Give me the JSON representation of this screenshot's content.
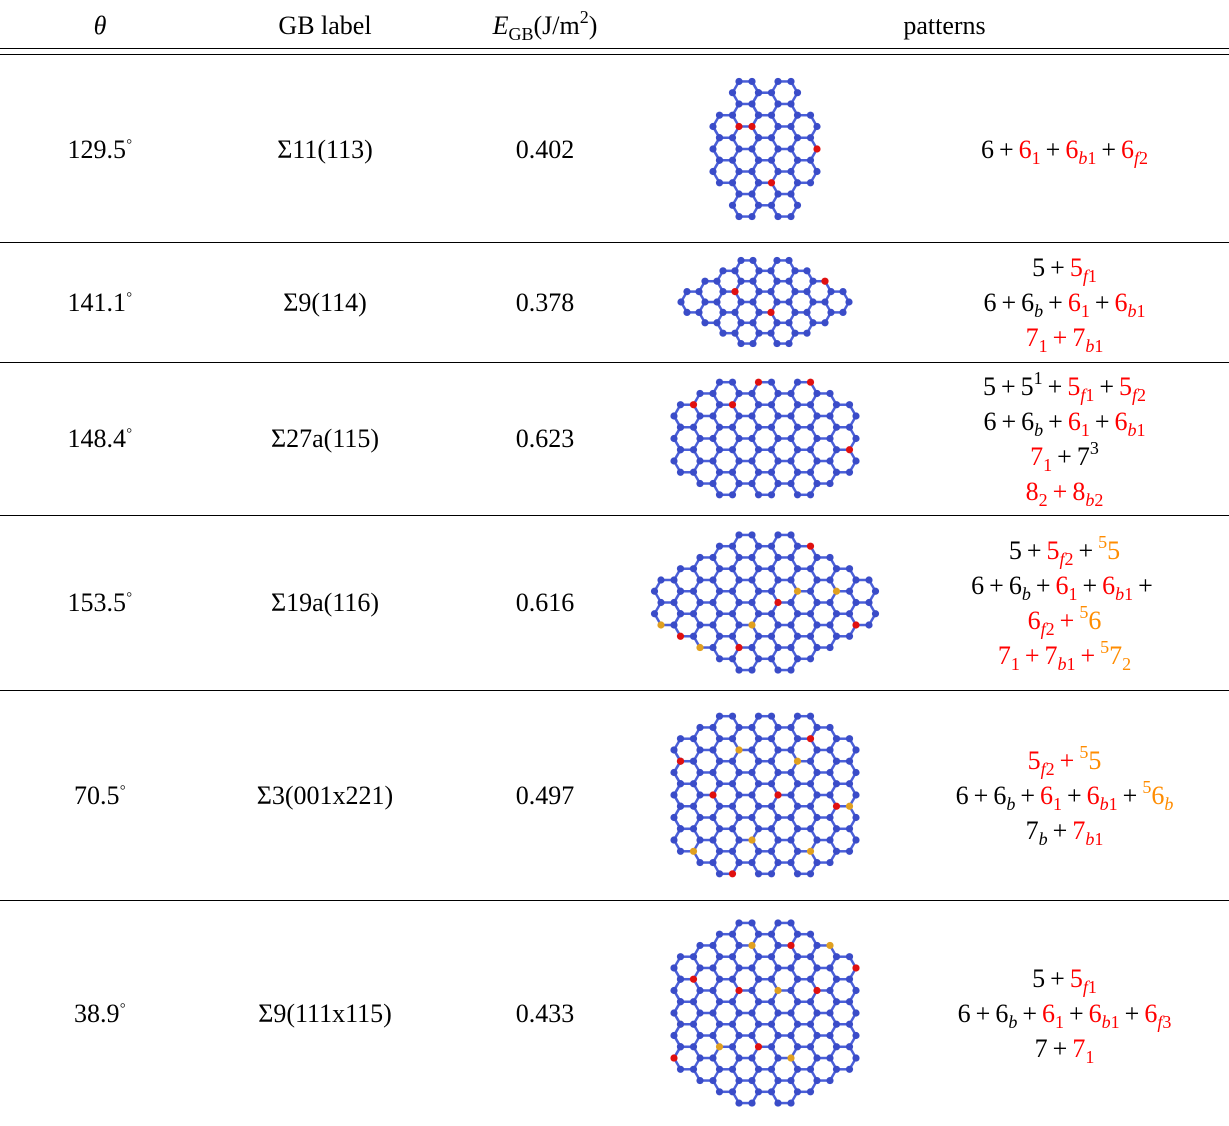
{
  "table": {
    "header": [
      [
        {
          "text": "θ"
        }
      ],
      [
        {
          "text": "GB label"
        }
      ],
      [
        {
          "text": "E",
          "sub": "GB"
        },
        {
          "text": "(J/m",
          "sup": "2"
        },
        {
          "text": ")"
        }
      ],
      [
        {
          "text": "patterns"
        }
      ]
    ],
    "rows": [
      {
        "theta": [
          {
            "text": "129.5",
            "sup": "◦"
          }
        ],
        "label": [
          {
            "text": "Σ11(113)"
          }
        ],
        "energy": 0.402,
        "patterns": [
          [
            {
              "text": "6"
            },
            {
              "text": "+"
            },
            {
              "text": "6",
              "sub": "1",
              "color": "#ff0000"
            },
            {
              "text": "+"
            },
            {
              "text": "6",
              "sub": "b1",
              "color": "#ff0000"
            },
            {
              "text": "+"
            },
            {
              "text": "6",
              "sub": "f2",
              "color": "#ff0000"
            }
          ]
        ]
      },
      {
        "theta": [
          {
            "text": "141.1",
            "sup": "◦"
          }
        ],
        "label": [
          {
            "text": "Σ9(114)"
          }
        ],
        "energy": 0.378,
        "patterns": [
          [
            {
              "text": "5"
            },
            {
              "text": "+"
            },
            {
              "text": "5",
              "sub": "f1",
              "color": "#ff0000"
            }
          ],
          [
            {
              "text": "6"
            },
            {
              "text": "+"
            },
            {
              "text": "6",
              "sub": "b"
            },
            {
              "text": "+"
            },
            {
              "text": "6",
              "sub": "1",
              "color": "#ff0000"
            },
            {
              "text": "+"
            },
            {
              "text": "6",
              "sub": "b1",
              "color": "#ff0000"
            }
          ],
          [
            {
              "text": "7",
              "sub": "1",
              "color": "#ff0000"
            },
            {
              "text": "+",
              "color": "#ff0000"
            },
            {
              "text": "7",
              "sub": "b1",
              "color": "#ff0000"
            }
          ]
        ]
      },
      {
        "theta": [
          {
            "text": "148.4",
            "sup": "◦"
          }
        ],
        "label": [
          {
            "text": "Σ27a(115)"
          }
        ],
        "energy": 0.623,
        "patterns": [
          [
            {
              "text": "5"
            },
            {
              "text": "+"
            },
            {
              "text": "5",
              "sup": "1"
            },
            {
              "text": "+"
            },
            {
              "text": "5",
              "sub": "f1",
              "color": "#ff0000"
            },
            {
              "text": "+"
            },
            {
              "text": "5",
              "sub": "f2",
              "color": "#ff0000"
            }
          ],
          [
            {
              "text": "6"
            },
            {
              "text": "+"
            },
            {
              "text": "6",
              "sub": "b"
            },
            {
              "text": "+"
            },
            {
              "text": "6",
              "sub": "1",
              "color": "#ff0000"
            },
            {
              "text": "+"
            },
            {
              "text": "6",
              "sub": "b1",
              "color": "#ff0000"
            }
          ],
          [
            {
              "text": "7",
              "sub": "1",
              "color": "#ff0000"
            },
            {
              "text": "+"
            },
            {
              "text": "7",
              "sup": "3"
            }
          ],
          [
            {
              "text": "8",
              "sub": "2",
              "color": "#ff0000"
            },
            {
              "text": "+",
              "color": "#ff0000"
            },
            {
              "text": "8",
              "sub": "b2",
              "color": "#ff0000"
            }
          ]
        ]
      },
      {
        "theta": [
          {
            "text": "153.5",
            "sup": "◦"
          }
        ],
        "label": [
          {
            "text": "Σ19a(116)"
          }
        ],
        "energy": 0.616,
        "patterns": [
          [
            {
              "text": "5"
            },
            {
              "text": "+"
            },
            {
              "text": "5",
              "sub": "f2",
              "color": "#ff0000"
            },
            {
              "text": "+"
            },
            {
              "pre": "5",
              "text": "5",
              "color": "#ff8c00"
            }
          ],
          [
            {
              "text": "6"
            },
            {
              "text": "+"
            },
            {
              "text": "6",
              "sub": "b"
            },
            {
              "text": "+"
            },
            {
              "text": "6",
              "sub": "1",
              "color": "#ff0000"
            },
            {
              "text": "+"
            },
            {
              "text": "6",
              "sub": "b1",
              "color": "#ff0000"
            },
            {
              "text": "+"
            }
          ],
          [
            {
              "text": "6",
              "sub": "f2",
              "color": "#ff0000"
            },
            {
              "text": "+",
              "color": "#ff0000"
            },
            {
              "pre": "5",
              "text": "6",
              "color": "#ff8c00"
            }
          ],
          [
            {
              "text": "7",
              "sub": "1",
              "color": "#ff0000"
            },
            {
              "text": "+",
              "color": "#ff0000"
            },
            {
              "text": "7",
              "sub": "b1",
              "color": "#ff0000"
            },
            {
              "text": "+",
              "color": "#ff0000"
            },
            {
              "pre": "5",
              "text": "7",
              "sub": "2",
              "color": "#ff8c00"
            }
          ]
        ]
      },
      {
        "theta": [
          {
            "text": "70.5",
            "sup": "◦"
          }
        ],
        "label": [
          {
            "text": "Σ3(001x221)"
          }
        ],
        "energy": 0.497,
        "patterns": [
          [
            {
              "text": "5",
              "sub": "f2",
              "color": "#ff0000"
            },
            {
              "text": "+",
              "color": "#ff0000"
            },
            {
              "pre": "5",
              "text": "5",
              "color": "#ff8c00"
            }
          ],
          [
            {
              "text": "6"
            },
            {
              "text": "+"
            },
            {
              "text": "6",
              "sub": "b"
            },
            {
              "text": "+"
            },
            {
              "text": "6",
              "sub": "1",
              "color": "#ff0000"
            },
            {
              "text": "+"
            },
            {
              "text": "6",
              "sub": "b1",
              "color": "#ff0000"
            },
            {
              "text": "+"
            },
            {
              "pre": "5",
              "text": "6",
              "sub": "b",
              "color": "#ff8c00"
            }
          ],
          [
            {
              "text": "7",
              "sub": "b"
            },
            {
              "text": "+"
            },
            {
              "text": "7",
              "sub": "b1",
              "color": "#ff0000"
            }
          ]
        ]
      },
      {
        "theta": [
          {
            "text": "38.9",
            "sup": "◦"
          }
        ],
        "label": [
          {
            "text": "Σ9(111x115)"
          }
        ],
        "energy": 0.433,
        "patterns": [
          [
            {
              "text": "5"
            },
            {
              "text": "+"
            },
            {
              "text": "5",
              "sub": "f1",
              "color": "#ff0000"
            }
          ],
          [
            {
              "text": "6"
            },
            {
              "text": "+"
            },
            {
              "text": "6",
              "sub": "b"
            },
            {
              "text": "+"
            },
            {
              "text": "6",
              "sub": "1",
              "color": "#ff0000"
            },
            {
              "text": "+"
            },
            {
              "text": "6",
              "sub": "b1",
              "color": "#ff0000"
            },
            {
              "text": "+"
            },
            {
              "text": "6",
              "sub": "f3",
              "color": "#ff0000"
            }
          ],
          [
            {
              "text": "7"
            },
            {
              "text": "+"
            },
            {
              "text": "7",
              "sub": "1",
              "color": "#ff0000"
            }
          ]
        ]
      }
    ]
  }
}
